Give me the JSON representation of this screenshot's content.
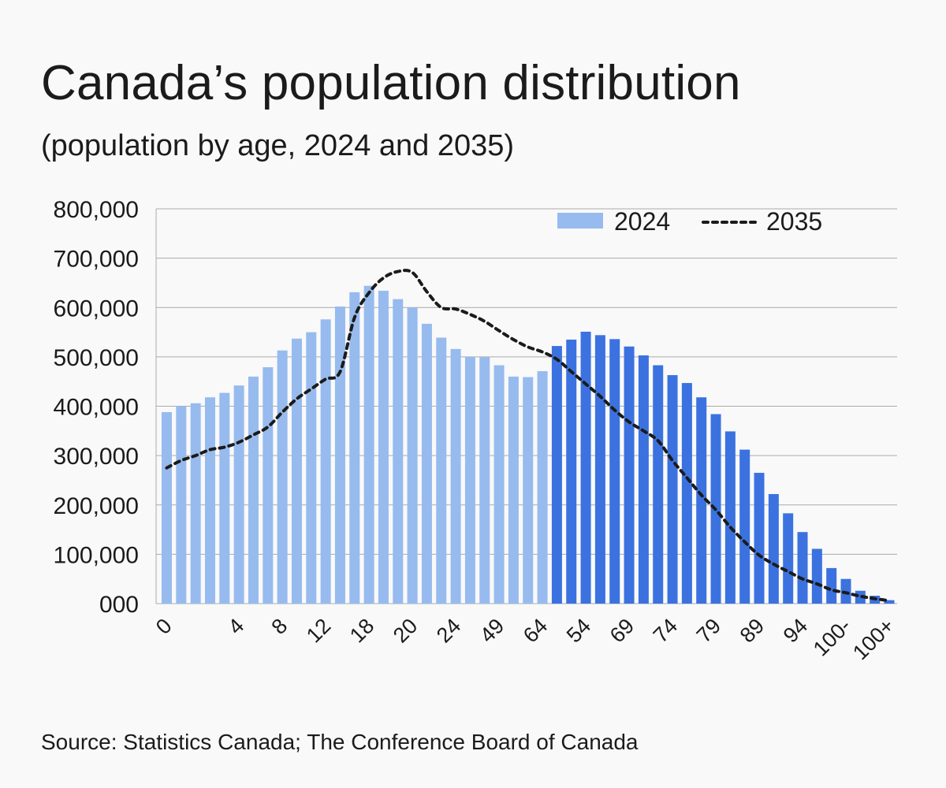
{
  "title": "Canada’s population distribution",
  "subtitle": "(population by age, 2024 and 2035)",
  "source": "Source: Statistics Canada; The Conference Board of Canada",
  "chart_data": {
    "type": "bar",
    "title": "Canada’s population distribution",
    "subtitle": "(population by age, 2024 and 2035)",
    "xlabel": "",
    "ylabel": "",
    "ylim": [
      0,
      800000
    ],
    "y_ticks": [
      0,
      100000,
      200000,
      300000,
      400000,
      500000,
      600000,
      700000,
      800000
    ],
    "y_tick_labels": [
      "000",
      "100,000",
      "200,000",
      "300,000",
      "400,000",
      "500,000",
      "600,000",
      "700,000",
      "800,000"
    ],
    "x_tick_labels": [
      "0",
      "4",
      "8",
      "12",
      "18",
      "20",
      "24",
      "49",
      "64",
      "54",
      "69",
      "74",
      "79",
      "89",
      "94",
      "100-",
      "100+"
    ],
    "x_tick_bar_index": [
      0,
      5,
      8,
      11,
      14,
      17,
      20,
      23,
      26,
      29,
      32,
      35,
      38,
      41,
      44,
      47,
      50
    ],
    "grid": true,
    "legend_position": "top-right",
    "series": [
      {
        "name": "2024",
        "kind": "bar",
        "color_light": "#97bbee",
        "color_dark": "#3b72e0",
        "dark_from_index": 27,
        "values": [
          388000,
          400000,
          406000,
          418000,
          427000,
          442000,
          460000,
          479000,
          513000,
          537000,
          550000,
          576000,
          602000,
          631000,
          644000,
          634000,
          617000,
          600000,
          567000,
          539000,
          516000,
          500000,
          499000,
          483000,
          460000,
          459000,
          471000,
          522000,
          535000,
          551000,
          544000,
          536000,
          521000,
          503000,
          483000,
          463000,
          447000,
          418000,
          384000,
          349000,
          312000,
          265000,
          222000,
          183000,
          145000,
          111000,
          72000,
          50000,
          26000,
          16000,
          7000
        ]
      },
      {
        "name": "2035",
        "kind": "line",
        "style": "dotted",
        "color": "#1b1b1b",
        "values": [
          275000,
          290000,
          300000,
          312000,
          317000,
          327000,
          342000,
          358000,
          388000,
          415000,
          435000,
          455000,
          470000,
          580000,
          630000,
          660000,
          673000,
          671000,
          632000,
          600000,
          597000,
          586000,
          572000,
          553000,
          535000,
          520000,
          510000,
          495000,
          470000,
          445000,
          420000,
          392000,
          368000,
          350000,
          330000,
          290000,
          255000,
          220000,
          190000,
          155000,
          125000,
          98000,
          80000,
          65000,
          50000,
          40000,
          28000,
          22000,
          15000,
          10000,
          6000
        ]
      }
    ]
  }
}
